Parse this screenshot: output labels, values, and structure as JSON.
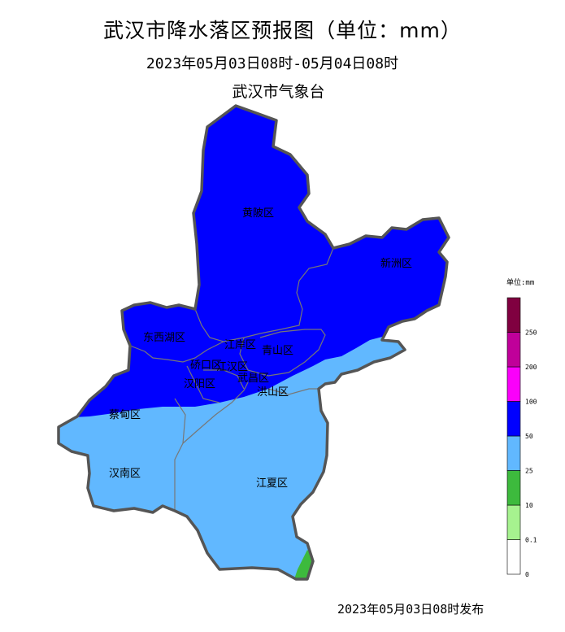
{
  "title": "武汉市降水落区预报图（单位：mm）",
  "valid_period": "2023年05月03日08时-05月04日08时",
  "issuer": "武汉市气象台",
  "issue_time": "2023年05月03日08时发布",
  "districts": {
    "huangpi": "黄陂区",
    "xinzhou": "新洲区",
    "dongxihu": "东西湖区",
    "jiangan": "江岸区",
    "qingshan": "青山区",
    "qiaokou": "硚口区",
    "jianghan": "江汉区",
    "hanyang": "汉阳区",
    "wuchang": "武昌区",
    "hongshan": "洪山区",
    "caidian": "蔡甸区",
    "hannan": "汉南区",
    "jiangxia": "江夏区"
  },
  "legend": {
    "title": "单位:mm",
    "classes": [
      {
        "from": "0",
        "to": "0.1",
        "color": "#ffffff"
      },
      {
        "from": "0.1",
        "to": "10",
        "color": "#a6f28f"
      },
      {
        "from": "10",
        "to": "25",
        "color": "#3dba3d"
      },
      {
        "from": "25",
        "to": "50",
        "color": "#61b8ff"
      },
      {
        "from": "50",
        "to": "100",
        "color": "#0000ff"
      },
      {
        "from": "100",
        "to": "200",
        "color": "#fa00fa"
      },
      {
        "from": "200",
        "to": "250",
        "color": "#c0009a"
      },
      {
        "from": "250",
        "to": "",
        "color": "#800040"
      }
    ],
    "ticks": [
      "0",
      "0.1",
      "10",
      "25",
      "50",
      "100",
      "200",
      "250"
    ]
  },
  "colors": {
    "heavy_rain": "#0000ff",
    "moderate_rain": "#61b8ff",
    "light_green": "#3dba3d",
    "boundary": "#555555",
    "inner_boundary": "#777777"
  }
}
